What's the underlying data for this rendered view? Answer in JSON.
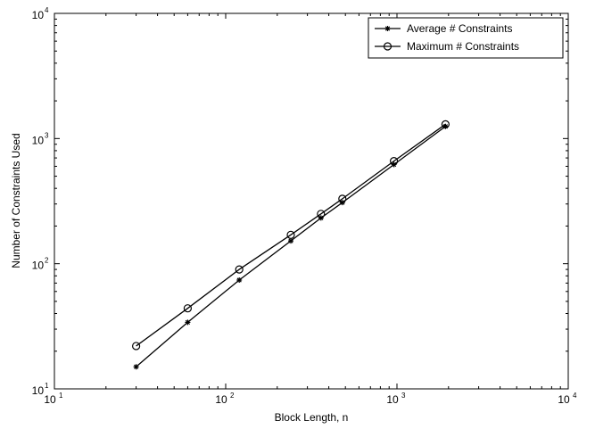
{
  "chart_data": {
    "type": "line",
    "xscale": "log",
    "yscale": "log",
    "xlabel": "Block Length, n",
    "ylabel": "Number of Constraints Used",
    "xlim": [
      10,
      10000
    ],
    "ylim": [
      10,
      10000
    ],
    "x_ticks": [
      "10",
      "10",
      "10",
      "10"
    ],
    "x_tick_exponents": [
      "1",
      "2",
      "3",
      "4"
    ],
    "y_ticks": [
      "10",
      "10",
      "10",
      "10"
    ],
    "y_tick_exponents": [
      "1",
      "2",
      "3",
      "4"
    ],
    "grid": false,
    "legend_position": "top-right",
    "x": [
      30,
      60,
      120,
      240,
      360,
      480,
      960,
      1920
    ],
    "series": [
      {
        "name": "Average # Constraints",
        "marker": "asterisk",
        "color": "#000000",
        "values": [
          15,
          34,
          74,
          152,
          232,
          308,
          620,
          1250
        ]
      },
      {
        "name": "Maximum # Constraints",
        "marker": "circle",
        "color": "#000000",
        "values": [
          22,
          44,
          90,
          170,
          250,
          330,
          660,
          1300
        ]
      }
    ]
  }
}
